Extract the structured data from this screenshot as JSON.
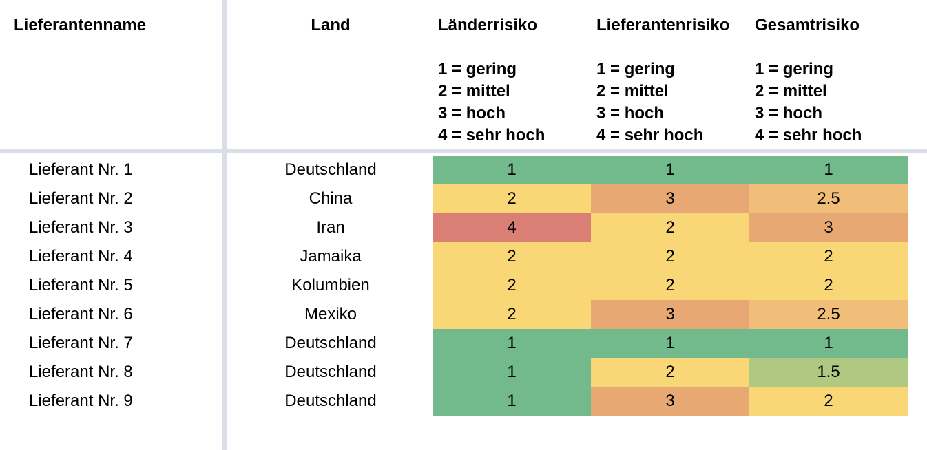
{
  "headers": {
    "name": "Lieferantenname",
    "land": "Land",
    "laender": "Länderrisiko",
    "lieferanten": "Lieferantenrisiko",
    "gesamt": "Gesamtrisiko"
  },
  "legend": [
    "1 = gering",
    "2 = mittel",
    "3 = hoch",
    "4 = sehr hoch"
  ],
  "scale_colors": {
    "1": "#72ba8c",
    "1.5": "#afc882",
    "2": "#f9d776",
    "2.5": "#f0be78",
    "3": "#e8a874",
    "4": "#da7f75"
  },
  "rows": [
    {
      "name": "Lieferant Nr. 1",
      "land": "Deutschland",
      "laender": "1",
      "lieferanten": "1",
      "gesamt": "1"
    },
    {
      "name": "Lieferant Nr. 2",
      "land": "China",
      "laender": "2",
      "lieferanten": "3",
      "gesamt": "2.5"
    },
    {
      "name": "Lieferant Nr. 3",
      "land": "Iran",
      "laender": "4",
      "lieferanten": "2",
      "gesamt": "3"
    },
    {
      "name": "Lieferant Nr. 4",
      "land": "Jamaika",
      "laender": "2",
      "lieferanten": "2",
      "gesamt": "2"
    },
    {
      "name": "Lieferant Nr. 5",
      "land": "Kolumbien",
      "laender": "2",
      "lieferanten": "2",
      "gesamt": "2"
    },
    {
      "name": "Lieferant Nr. 6",
      "land": "Mexiko",
      "laender": "2",
      "lieferanten": "3",
      "gesamt": "2.5"
    },
    {
      "name": "Lieferant Nr. 7",
      "land": "Deutschland",
      "laender": "1",
      "lieferanten": "1",
      "gesamt": "1"
    },
    {
      "name": "Lieferant Nr. 8",
      "land": "Deutschland",
      "laender": "1",
      "lieferanten": "2",
      "gesamt": "1.5"
    },
    {
      "name": "Lieferant Nr. 9",
      "land": "Deutschland",
      "laender": "1",
      "lieferanten": "3",
      "gesamt": "2"
    }
  ]
}
